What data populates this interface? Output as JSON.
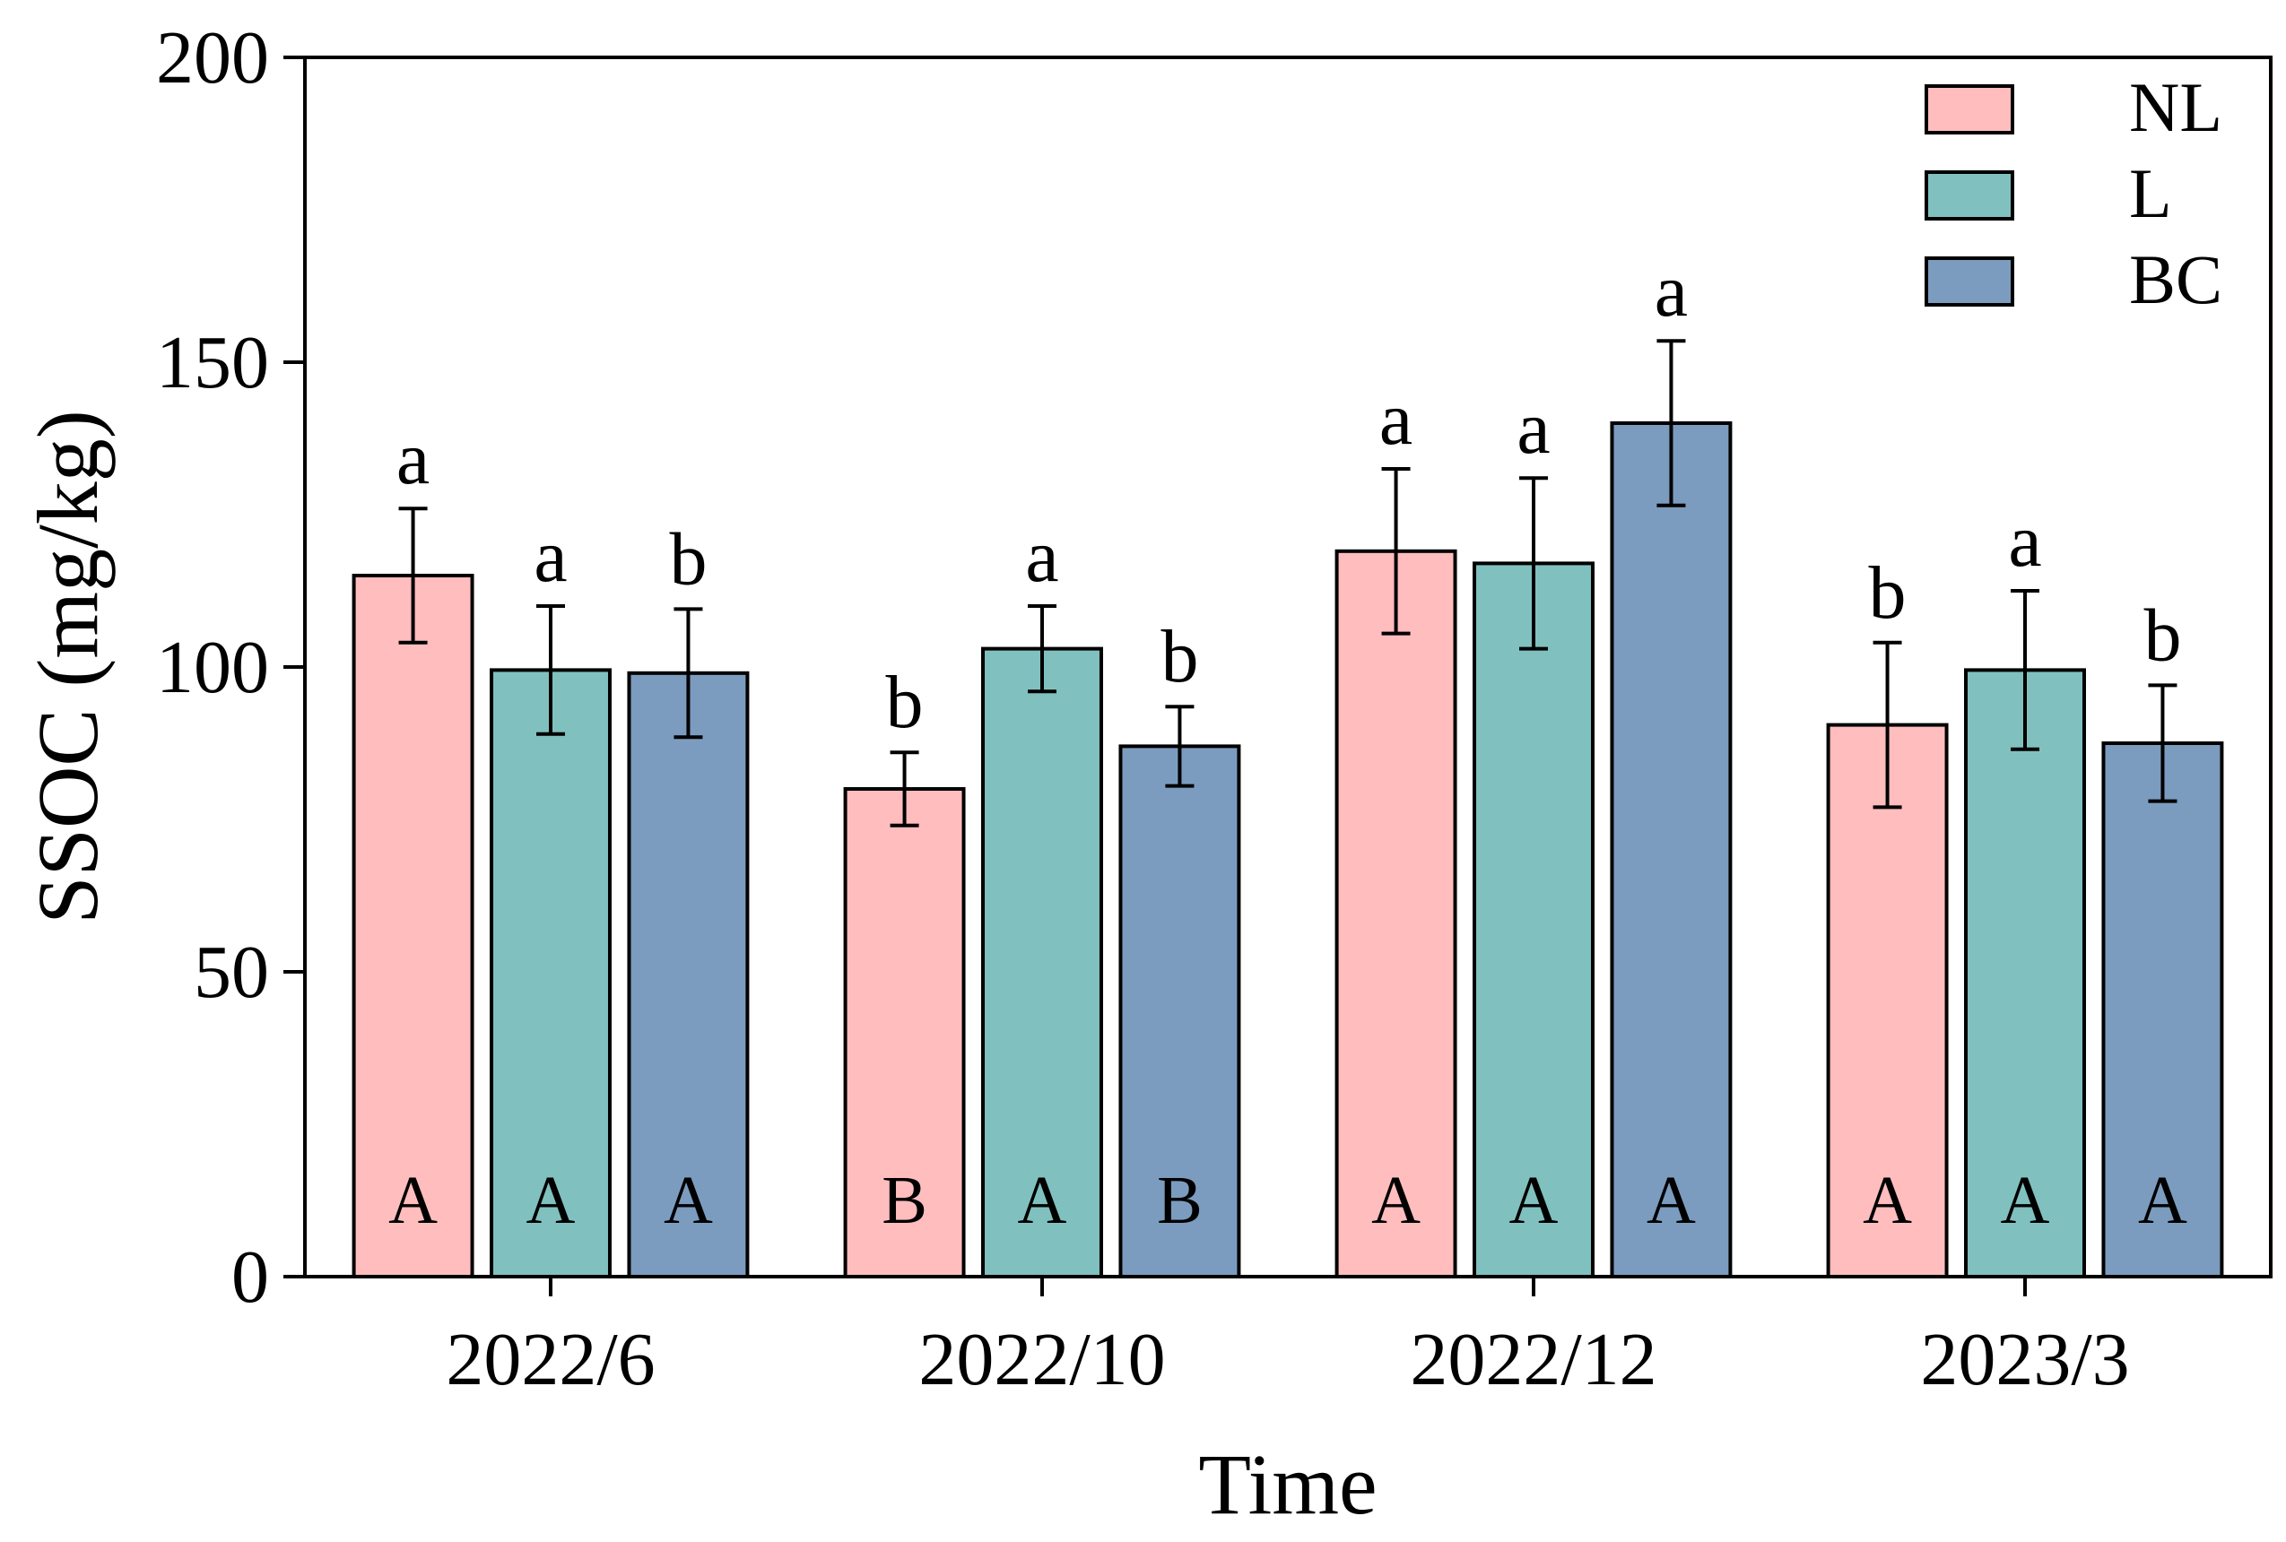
{
  "chart_data": {
    "type": "bar",
    "title": "",
    "xlabel": "Time",
    "ylabel": "SSOC (mg/kg)",
    "ylim": [
      0,
      200
    ],
    "yticks": [
      0,
      50,
      100,
      150,
      200
    ],
    "categories": [
      "2022/6",
      "2022/10",
      "2022/12",
      "2023/3"
    ],
    "legend_position": "top-right",
    "grid": false,
    "series": [
      {
        "name": "NL",
        "color": "#FFBDBE",
        "values": [
          115,
          80,
          119,
          90.5
        ],
        "errors": [
          11,
          6,
          13.5,
          13.5
        ],
        "sig_lower": [
          "a",
          "b",
          "a",
          "b"
        ],
        "sig_upper": [
          "A",
          "B",
          "A",
          "A"
        ]
      },
      {
        "name": "L",
        "color": "#80C1BF",
        "values": [
          99.5,
          103,
          117,
          99.5
        ],
        "errors": [
          10.5,
          7,
          14,
          13
        ],
        "sig_lower": [
          "a",
          "a",
          "a",
          "a"
        ],
        "sig_upper": [
          "A",
          "A",
          "A",
          "A"
        ]
      },
      {
        "name": "BC",
        "color": "#7B9CBF",
        "values": [
          99,
          87,
          140,
          87.5
        ],
        "errors": [
          10.5,
          6.5,
          13.5,
          9.5
        ],
        "sig_lower": [
          "b",
          "b",
          "a",
          "b"
        ],
        "sig_upper": [
          "A",
          "B",
          "A",
          "A"
        ]
      }
    ]
  }
}
